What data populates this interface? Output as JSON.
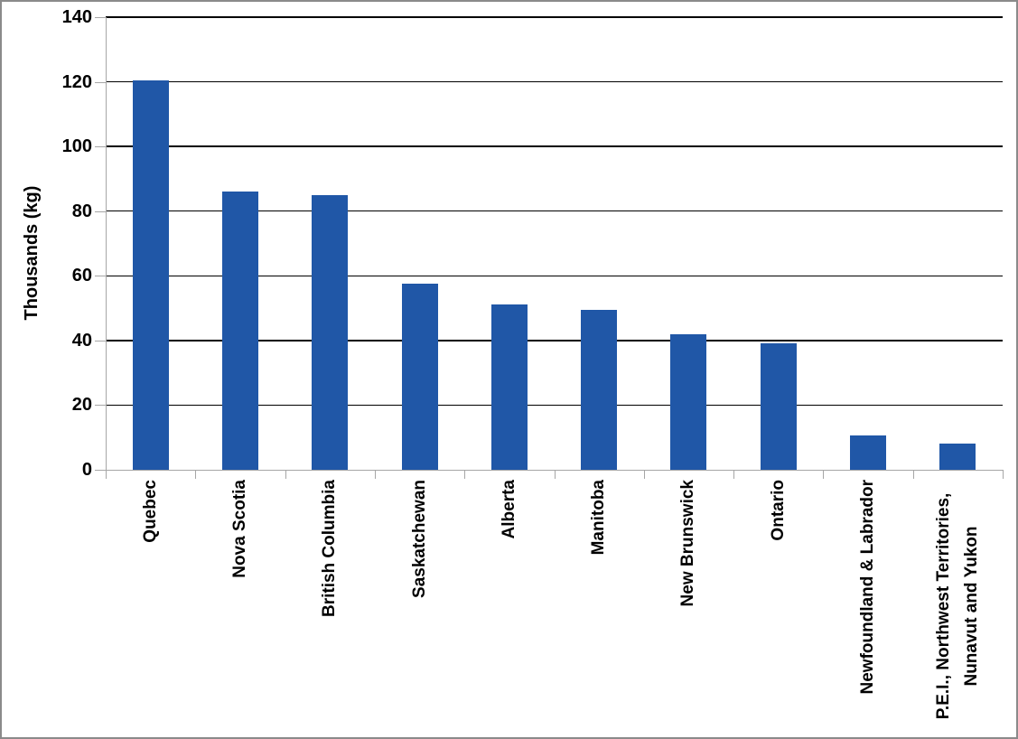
{
  "chart_data": {
    "type": "bar",
    "title": "",
    "xlabel": "",
    "ylabel": "Thousands (kg)",
    "ylim": [
      0,
      140
    ],
    "y_ticks": [
      0,
      20,
      40,
      60,
      80,
      100,
      120,
      140
    ],
    "grid": true,
    "legend": false,
    "categories": [
      "Quebec",
      "Nova Scotia",
      "British Columbia",
      "Saskatchewan",
      "Alberta",
      "Manitoba",
      "New Brunswick",
      "Ontario",
      "Newfoundland & Labrador",
      "P.E.I., Northwest Territories,\nNunavut and Yukon"
    ],
    "values": [
      120.5,
      86,
      85,
      57.5,
      51,
      49.5,
      42,
      39,
      10.7,
      8
    ]
  },
  "colors": {
    "bar": "#2057A7",
    "gridline": "#000000",
    "axis": "#a6a6a6",
    "frame_border": "#8a8a8a",
    "text": "#000000",
    "background": "#ffffff"
  }
}
